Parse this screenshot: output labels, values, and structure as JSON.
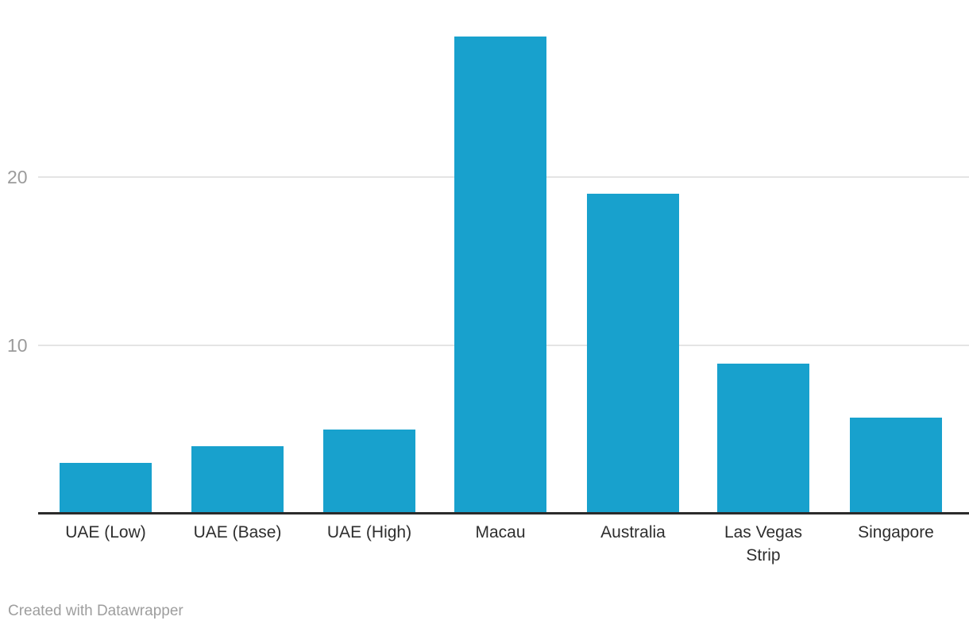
{
  "chart_data": {
    "type": "bar",
    "title": "",
    "xlabel": "",
    "ylabel": "",
    "categories": [
      "UAE (Low)",
      "UAE (Base)",
      "UAE (High)",
      "Macau",
      "Australia",
      "Las Vegas Strip",
      "Singapore"
    ],
    "values": [
      3.0,
      4.0,
      5.0,
      28.3,
      19.0,
      8.9,
      5.7
    ],
    "ylim": [
      0,
      28.5
    ],
    "yticks": [
      "10",
      "20"
    ],
    "grid": true,
    "legend_position": "none",
    "orientation": "vertical"
  },
  "colors": {
    "bar": "#18a1cd",
    "axis_line": "#2b2b2b",
    "gridline": "#e4e4e4",
    "tick_label": "#9b9b9b",
    "category_label": "#2e2e2e",
    "footer_text": "#9e9e9e",
    "background": "#ffffff"
  },
  "footer": {
    "credit": "Created with Datawrapper"
  }
}
